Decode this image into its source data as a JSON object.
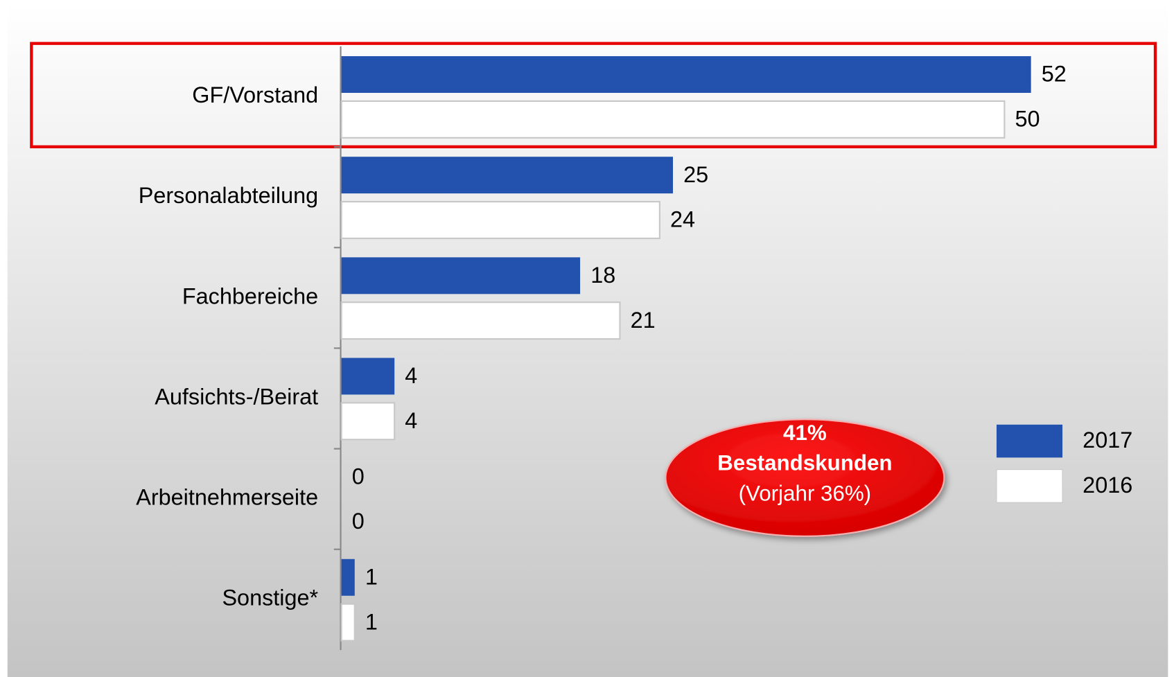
{
  "chart_data": {
    "type": "barh",
    "categories": [
      "GF/Vorstand",
      "Personalabteilung",
      "Fachbereiche",
      "Aufsichts-/Beirat",
      "Arbeitnehmerseite",
      "Sonstige*"
    ],
    "series": [
      {
        "name": "2017",
        "color": "#2352ae",
        "values": [
          52,
          25,
          18,
          4,
          0,
          1
        ]
      },
      {
        "name": "2016",
        "color": "#ffffff",
        "values": [
          50,
          24,
          21,
          4,
          0,
          1
        ]
      }
    ],
    "annotation": {
      "lines": [
        "41%",
        "Bestandskunden",
        "(Vorjahr 36%)"
      ]
    }
  }
}
